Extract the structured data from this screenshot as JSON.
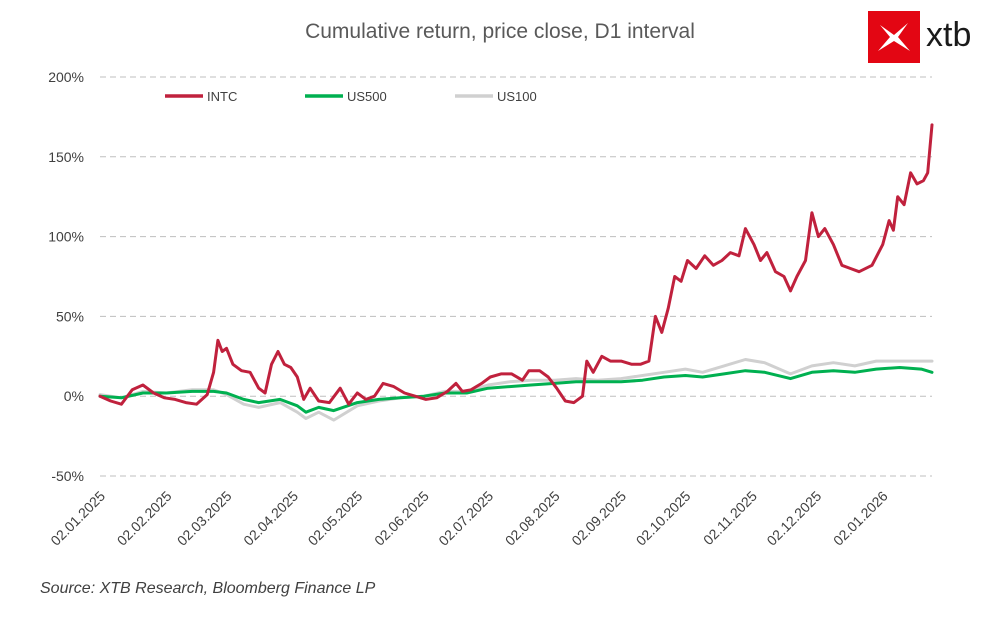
{
  "brand": {
    "name": "xtb",
    "accent_color": "#e30613"
  },
  "source": "Source: XTB Research, Bloomberg Finance LP",
  "chart_data": {
    "type": "line",
    "title": "Cumulative return, price close, D1 interval",
    "xlabel": "",
    "ylabel": "",
    "ylim": [
      -50,
      200
    ],
    "y_ticks": [
      -50,
      0,
      50,
      100,
      150,
      200
    ],
    "y_tick_labels": [
      "-50%",
      "0%",
      "50%",
      "100%",
      "150%",
      "200%"
    ],
    "x_tick_labels": [
      "02.01.2025",
      "02.02.2025",
      "02.03.2025",
      "02.04.2025",
      "02.05.2025",
      "02.06.2025",
      "02.07.2025",
      "02.08.2025",
      "02.09.2025",
      "02.10.2025",
      "02.11.2025",
      "02.12.2025",
      "02.01.2026"
    ],
    "grid": "horizontal dashed",
    "legend_position": "top",
    "series": [
      {
        "name": "INTC",
        "color": "#c0213d",
        "points": [
          [
            "02.01.2025",
            0
          ],
          [
            "07.01.2025",
            -3
          ],
          [
            "12.01.2025",
            -5
          ],
          [
            "17.01.2025",
            4
          ],
          [
            "22.01.2025",
            7
          ],
          [
            "27.01.2025",
            2
          ],
          [
            "01.02.2025",
            -1
          ],
          [
            "06.02.2025",
            -2
          ],
          [
            "11.02.2025",
            -4
          ],
          [
            "16.02.2025",
            -5
          ],
          [
            "21.02.2025",
            1
          ],
          [
            "24.02.2025",
            15
          ],
          [
            "26.02.2025",
            35
          ],
          [
            "28.02.2025",
            28
          ],
          [
            "02.03.2025",
            30
          ],
          [
            "05.03.2025",
            20
          ],
          [
            "09.03.2025",
            16
          ],
          [
            "13.03.2025",
            15
          ],
          [
            "17.03.2025",
            5
          ],
          [
            "20.03.2025",
            2
          ],
          [
            "23.03.2025",
            20
          ],
          [
            "26.03.2025",
            28
          ],
          [
            "29.03.2025",
            20
          ],
          [
            "01.04.2025",
            18
          ],
          [
            "04.04.2025",
            12
          ],
          [
            "07.04.2025",
            -2
          ],
          [
            "10.04.2025",
            5
          ],
          [
            "14.04.2025",
            -3
          ],
          [
            "19.04.2025",
            -4
          ],
          [
            "24.04.2025",
            5
          ],
          [
            "28.04.2025",
            -5
          ],
          [
            "02.05.2025",
            2
          ],
          [
            "06.05.2025",
            -2
          ],
          [
            "10.05.2025",
            0
          ],
          [
            "14.05.2025",
            8
          ],
          [
            "19.05.2025",
            6
          ],
          [
            "24.05.2025",
            2
          ],
          [
            "29.05.2025",
            0
          ],
          [
            "03.06.2025",
            -2
          ],
          [
            "08.06.2025",
            -1
          ],
          [
            "13.06.2025",
            3
          ],
          [
            "17.06.2025",
            8
          ],
          [
            "20.06.2025",
            3
          ],
          [
            "24.06.2025",
            4
          ],
          [
            "29.06.2025",
            8
          ],
          [
            "03.07.2025",
            12
          ],
          [
            "08.07.2025",
            14
          ],
          [
            "13.07.2025",
            14
          ],
          [
            "18.07.2025",
            10
          ],
          [
            "21.07.2025",
            16
          ],
          [
            "26.07.2025",
            16
          ],
          [
            "30.07.2025",
            12
          ],
          [
            "03.08.2025",
            5
          ],
          [
            "07.08.2025",
            -3
          ],
          [
            "11.08.2025",
            -4
          ],
          [
            "15.08.2025",
            0
          ],
          [
            "17.08.2025",
            22
          ],
          [
            "20.08.2025",
            15
          ],
          [
            "24.08.2025",
            25
          ],
          [
            "28.08.2025",
            22
          ],
          [
            "02.09.2025",
            22
          ],
          [
            "07.09.2025",
            20
          ],
          [
            "11.09.2025",
            20
          ],
          [
            "15.09.2025",
            22
          ],
          [
            "18.09.2025",
            50
          ],
          [
            "21.09.2025",
            40
          ],
          [
            "24.09.2025",
            55
          ],
          [
            "27.09.2025",
            75
          ],
          [
            "30.09.2025",
            72
          ],
          [
            "03.10.2025",
            85
          ],
          [
            "07.10.2025",
            80
          ],
          [
            "11.10.2025",
            88
          ],
          [
            "15.10.2025",
            82
          ],
          [
            "19.10.2025",
            85
          ],
          [
            "23.10.2025",
            90
          ],
          [
            "27.10.2025",
            88
          ],
          [
            "30.10.2025",
            105
          ],
          [
            "03.11.2025",
            95
          ],
          [
            "06.11.2025",
            85
          ],
          [
            "09.11.2025",
            90
          ],
          [
            "13.11.2025",
            78
          ],
          [
            "17.11.2025",
            75
          ],
          [
            "20.11.2025",
            66
          ],
          [
            "23.11.2025",
            75
          ],
          [
            "27.11.2025",
            85
          ],
          [
            "30.11.2025",
            115
          ],
          [
            "03.12.2025",
            100
          ],
          [
            "06.12.2025",
            105
          ],
          [
            "10.12.2025",
            95
          ],
          [
            "14.12.2025",
            82
          ],
          [
            "18.12.2025",
            80
          ],
          [
            "22.12.2025",
            78
          ],
          [
            "28.12.2025",
            82
          ],
          [
            "02.01.2026",
            95
          ],
          [
            "05.01.2026",
            110
          ],
          [
            "07.01.2026",
            104
          ],
          [
            "09.01.2026",
            125
          ],
          [
            "12.01.2026",
            120
          ],
          [
            "15.01.2026",
            140
          ],
          [
            "18.01.2026",
            133
          ],
          [
            "21.01.2026",
            135
          ],
          [
            "23.01.2026",
            140
          ],
          [
            "25.01.2026",
            170
          ]
        ]
      },
      {
        "name": "US500",
        "color": "#00b050",
        "points": [
          [
            "02.01.2025",
            0
          ],
          [
            "12.01.2025",
            -1
          ],
          [
            "22.01.2025",
            2
          ],
          [
            "02.02.2025",
            2
          ],
          [
            "14.02.2025",
            3
          ],
          [
            "24.02.2025",
            3
          ],
          [
            "02.03.2025",
            2
          ],
          [
            "10.03.2025",
            -2
          ],
          [
            "17.03.2025",
            -4
          ],
          [
            "27.03.2025",
            -2
          ],
          [
            "04.04.2025",
            -6
          ],
          [
            "08.04.2025",
            -10
          ],
          [
            "14.04.2025",
            -7
          ],
          [
            "21.04.2025",
            -9
          ],
          [
            "02.05.2025",
            -4
          ],
          [
            "12.05.2025",
            -2
          ],
          [
            "22.05.2025",
            -1
          ],
          [
            "02.06.2025",
            0
          ],
          [
            "12.06.2025",
            2
          ],
          [
            "22.06.2025",
            2
          ],
          [
            "02.07.2025",
            5
          ],
          [
            "12.07.2025",
            6
          ],
          [
            "22.07.2025",
            7
          ],
          [
            "02.08.2025",
            8
          ],
          [
            "12.08.2025",
            9
          ],
          [
            "22.08.2025",
            9
          ],
          [
            "02.09.2025",
            9
          ],
          [
            "12.09.2025",
            10
          ],
          [
            "22.09.2025",
            12
          ],
          [
            "02.10.2025",
            13
          ],
          [
            "10.10.2025",
            12
          ],
          [
            "20.10.2025",
            14
          ],
          [
            "30.10.2025",
            16
          ],
          [
            "08.11.2025",
            15
          ],
          [
            "20.11.2025",
            11
          ],
          [
            "30.11.2025",
            15
          ],
          [
            "10.12.2025",
            16
          ],
          [
            "20.12.2025",
            15
          ],
          [
            "30.12.2025",
            17
          ],
          [
            "10.01.2026",
            18
          ],
          [
            "20.01.2026",
            17
          ],
          [
            "25.01.2026",
            15
          ]
        ]
      },
      {
        "name": "US100",
        "color": "#d0d0d0",
        "points": [
          [
            "02.01.2025",
            1
          ],
          [
            "12.01.2025",
            -1
          ],
          [
            "22.01.2025",
            3
          ],
          [
            "02.02.2025",
            2
          ],
          [
            "14.02.2025",
            4
          ],
          [
            "24.02.2025",
            4
          ],
          [
            "02.03.2025",
            1
          ],
          [
            "10.03.2025",
            -5
          ],
          [
            "17.03.2025",
            -7
          ],
          [
            "27.03.2025",
            -4
          ],
          [
            "04.04.2025",
            -10
          ],
          [
            "08.04.2025",
            -14
          ],
          [
            "14.04.2025",
            -10
          ],
          [
            "21.04.2025",
            -15
          ],
          [
            "02.05.2025",
            -6
          ],
          [
            "12.05.2025",
            -3
          ],
          [
            "22.05.2025",
            -1
          ],
          [
            "02.06.2025",
            0
          ],
          [
            "12.06.2025",
            3
          ],
          [
            "22.06.2025",
            3
          ],
          [
            "02.07.2025",
            7
          ],
          [
            "12.07.2025",
            9
          ],
          [
            "22.07.2025",
            10
          ],
          [
            "02.08.2025",
            10
          ],
          [
            "12.08.2025",
            11
          ],
          [
            "22.08.2025",
            10
          ],
          [
            "02.09.2025",
            11
          ],
          [
            "12.09.2025",
            13
          ],
          [
            "22.09.2025",
            15
          ],
          [
            "02.10.2025",
            17
          ],
          [
            "10.10.2025",
            15
          ],
          [
            "20.10.2025",
            19
          ],
          [
            "30.10.2025",
            23
          ],
          [
            "08.11.2025",
            21
          ],
          [
            "20.11.2025",
            14
          ],
          [
            "30.11.2025",
            19
          ],
          [
            "10.12.2025",
            21
          ],
          [
            "20.12.2025",
            19
          ],
          [
            "30.12.2025",
            22
          ],
          [
            "10.01.2026",
            22
          ],
          [
            "20.01.2026",
            22
          ],
          [
            "25.01.2026",
            22
          ]
        ]
      }
    ]
  }
}
